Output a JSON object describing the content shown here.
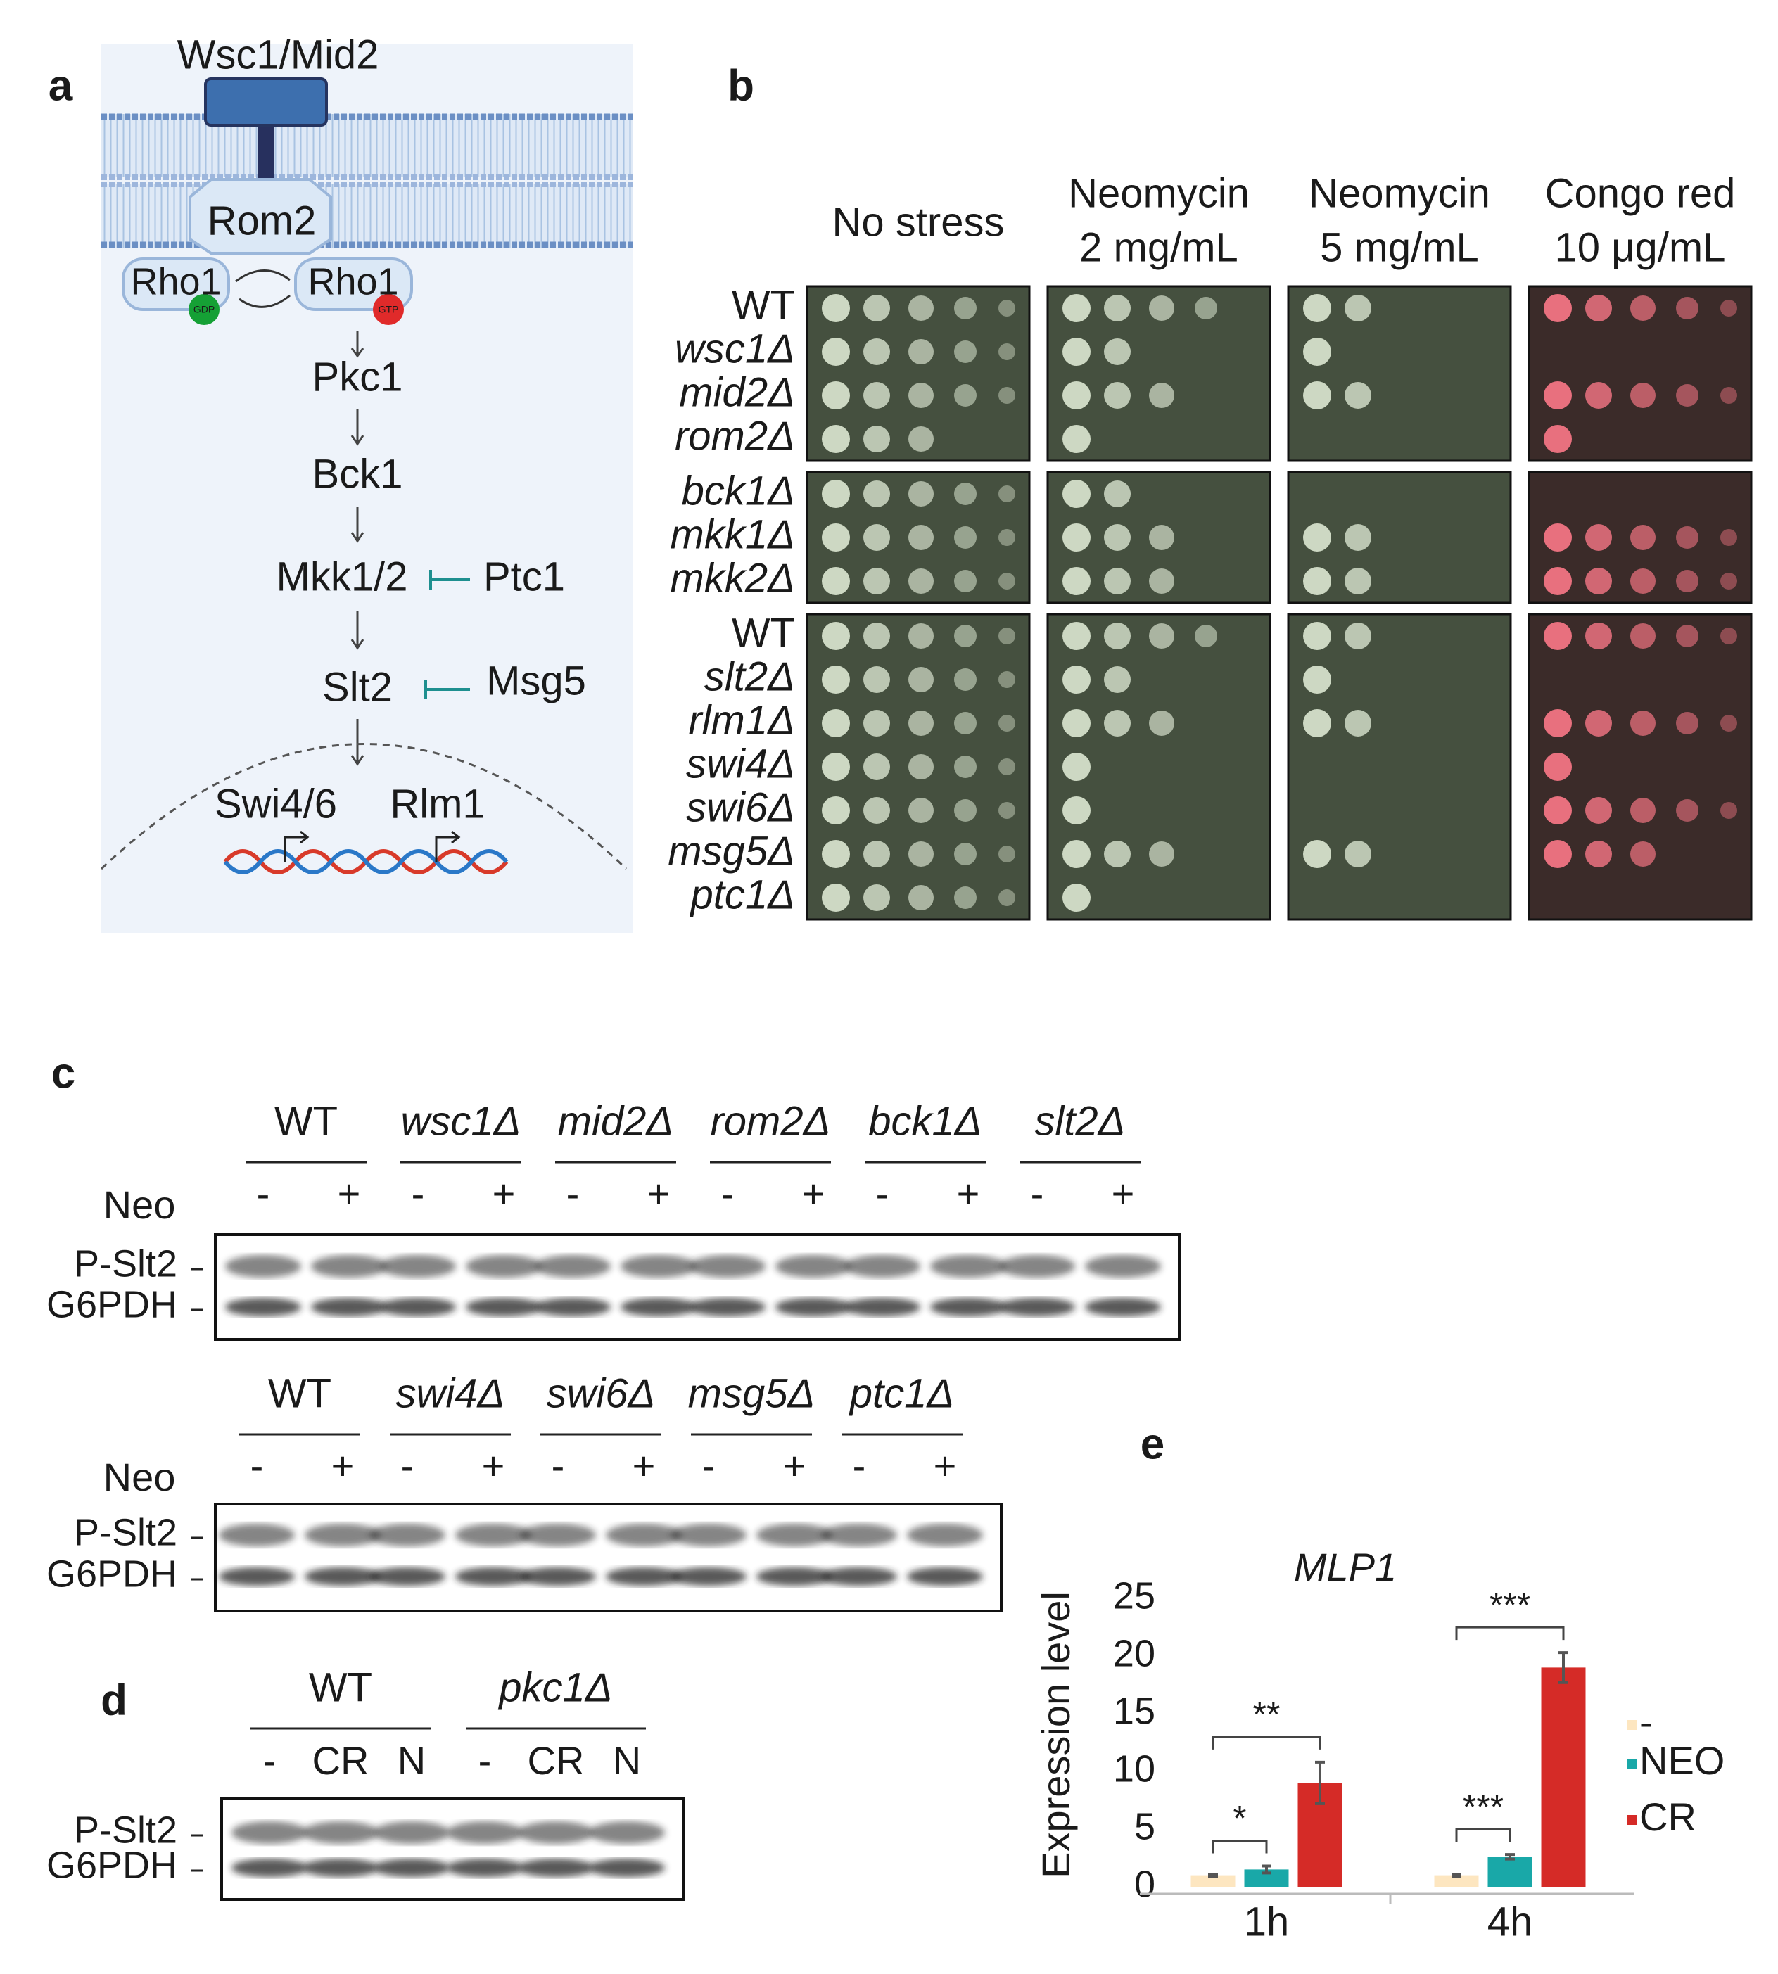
{
  "panel_a": {
    "label": "a",
    "receptor": "Wsc1/Mid2",
    "gef": "Rom2",
    "rho_gdp": "Rho1",
    "rho_gtp": "Rho1",
    "gdp": "GDP",
    "gtp": "GTP",
    "kinases": [
      "Pkc1",
      "Bck1",
      "Mkk1/2",
      "Slt2"
    ],
    "phosphatases": [
      "Ptc1",
      "Msg5"
    ],
    "factors": [
      "Swi4/6",
      "Rlm1"
    ]
  },
  "panel_b": {
    "label": "b",
    "conditions": [
      {
        "name": "No stress"
      },
      {
        "name": "Neomycin",
        "dose": "2 mg/mL"
      },
      {
        "name": "Neomycin",
        "dose": "5 mg/mL"
      },
      {
        "name": "Congo red",
        "dose": "10 μg/mL"
      }
    ],
    "congo_red": 3,
    "groups": [
      {
        "strains": [
          {
            "name": "WT",
            "mutant": false,
            "sensitive": false,
            "growth": [
              5,
              4,
              2,
              5
            ]
          },
          {
            "name": "wsc1Δ",
            "mutant": true,
            "sensitive": true,
            "growth": [
              5,
              2,
              1,
              0
            ]
          },
          {
            "name": "mid2Δ",
            "mutant": true,
            "sensitive": false,
            "growth": [
              5,
              3,
              2,
              5
            ]
          },
          {
            "name": "rom2Δ",
            "mutant": true,
            "sensitive": true,
            "growth": [
              3,
              1,
              0,
              1
            ]
          }
        ]
      },
      {
        "strains": [
          {
            "name": "bck1Δ",
            "mutant": true,
            "sensitive": true,
            "growth": [
              5,
              2,
              0,
              0
            ]
          },
          {
            "name": "mkk1Δ",
            "mutant": true,
            "sensitive": false,
            "growth": [
              5,
              3,
              2,
              5
            ]
          },
          {
            "name": "mkk2Δ",
            "mutant": true,
            "sensitive": false,
            "growth": [
              5,
              3,
              2,
              5
            ]
          }
        ]
      },
      {
        "strains": [
          {
            "name": "WT",
            "mutant": false,
            "sensitive": false,
            "growth": [
              5,
              4,
              2,
              5
            ]
          },
          {
            "name": "slt2Δ",
            "mutant": true,
            "sensitive": true,
            "growth": [
              5,
              2,
              1,
              0
            ]
          },
          {
            "name": "rlm1Δ",
            "mutant": true,
            "sensitive": false,
            "growth": [
              5,
              3,
              2,
              5
            ]
          },
          {
            "name": "swi4Δ",
            "mutant": true,
            "sensitive": true,
            "growth": [
              5,
              1,
              0,
              1
            ]
          },
          {
            "name": "swi6Δ",
            "mutant": true,
            "sensitive": true,
            "growth": [
              5,
              1,
              0,
              5
            ]
          },
          {
            "name": "msg5Δ",
            "mutant": true,
            "sensitive": false,
            "growth": [
              5,
              3,
              2,
              3
            ]
          },
          {
            "name": "ptc1Δ",
            "mutant": true,
            "sensitive": true,
            "growth": [
              5,
              1,
              0,
              0
            ]
          }
        ]
      }
    ]
  },
  "panel_c": {
    "label": "c",
    "blots": [
      {
        "treatment": "Neo",
        "groups": [
          {
            "name": "WT",
            "mutant": false,
            "lanes": [
              "-",
              "+"
            ]
          },
          {
            "name": "wsc1Δ",
            "mutant": true,
            "lanes": [
              "-",
              "+"
            ]
          },
          {
            "name": "mid2Δ",
            "mutant": true,
            "lanes": [
              "-",
              "+"
            ]
          },
          {
            "name": "rom2Δ",
            "mutant": true,
            "lanes": [
              "-",
              "+"
            ]
          },
          {
            "name": "bck1Δ",
            "mutant": true,
            "lanes": [
              "-",
              "+"
            ]
          },
          {
            "name": "slt2Δ",
            "mutant": true,
            "lanes": [
              "-",
              "+"
            ]
          }
        ],
        "bands": [
          "P-Slt2",
          "G6PDH"
        ]
      },
      {
        "treatment": "Neo",
        "groups": [
          {
            "name": "WT",
            "mutant": false,
            "lanes": [
              "-",
              "+"
            ]
          },
          {
            "name": "swi4Δ",
            "mutant": true,
            "lanes": [
              "-",
              "+"
            ]
          },
          {
            "name": "swi6Δ",
            "mutant": true,
            "lanes": [
              "-",
              "+"
            ]
          },
          {
            "name": "msg5Δ",
            "mutant": true,
            "lanes": [
              "-",
              "+"
            ]
          },
          {
            "name": "ptc1Δ",
            "mutant": true,
            "lanes": [
              "-",
              "+"
            ]
          }
        ],
        "bands": [
          "P-Slt2",
          "G6PDH"
        ]
      }
    ]
  },
  "panel_d": {
    "label": "d",
    "groups": [
      {
        "name": "WT",
        "mutant": false,
        "lanes": [
          "-",
          "CR",
          "N"
        ]
      },
      {
        "name": "pkc1Δ",
        "mutant": true,
        "lanes": [
          "-",
          "CR",
          "N"
        ]
      }
    ],
    "bands": [
      "P-Slt2",
      "G6PDH"
    ]
  },
  "chart_data": {
    "type": "bar",
    "label": "e",
    "title": "MLP1",
    "ylabel": "Expression level",
    "categories": [
      "1h",
      "4h"
    ],
    "series": [
      {
        "name": "-",
        "color": "#fde6c0",
        "values": [
          1,
          1
        ],
        "errors": [
          0.1,
          0.1
        ]
      },
      {
        "name": "NEO",
        "color": "#19a8a8",
        "values": [
          1.5,
          2.6
        ],
        "errors": [
          0.3,
          0.2
        ]
      },
      {
        "name": "CR",
        "color": "#d52b27",
        "values": [
          9,
          19
        ],
        "errors": [
          1.8,
          1.3
        ]
      }
    ],
    "ylim": [
      0,
      25
    ],
    "yticks": [
      0,
      5,
      10,
      15,
      20,
      25
    ],
    "annotations": [
      {
        "text": "*",
        "category": 0,
        "series": [
          0,
          1
        ]
      },
      {
        "text": "**",
        "category": 0,
        "series": [
          0,
          2
        ]
      },
      {
        "text": "***",
        "category": 1,
        "series": [
          0,
          1
        ]
      },
      {
        "text": "***",
        "category": 1,
        "series": [
          0,
          2
        ]
      }
    ]
  }
}
